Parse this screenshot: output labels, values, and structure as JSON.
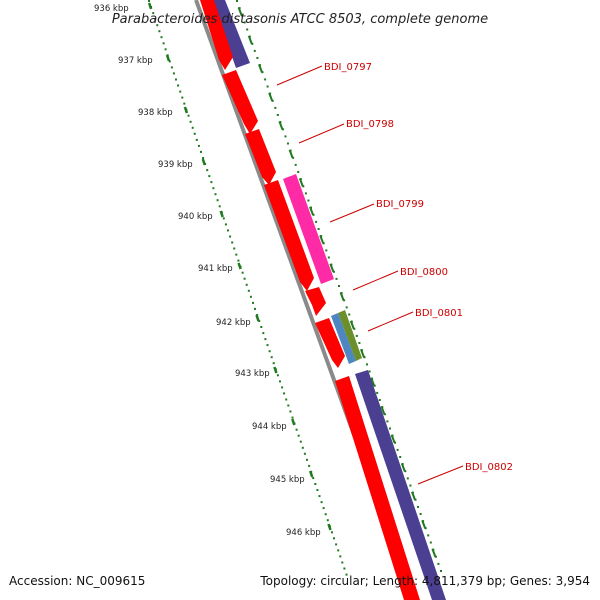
{
  "title": "Parabacteroides distasonis ATCC 8503, complete genome",
  "accession": "Accession: NC_009615",
  "summary": "Topology: circular; Length: 4,811,379 bp; Genes: 3,954",
  "ruler": {
    "labels": [
      "936 kbp",
      "937 kbp",
      "938 kbp",
      "939 kbp",
      "940 kbp",
      "941 kbp",
      "942 kbp",
      "943 kbp",
      "944 kbp",
      "945 kbp",
      "946 kbp"
    ]
  },
  "gene_labels": [
    "BDI_0797",
    "BDI_0798",
    "BDI_0799",
    "BDI_0800",
    "BDI_0801",
    "BDI_0802"
  ],
  "colors": {
    "cds_forward": "#ff0000",
    "cds_reverse": "#4b3f91",
    "trna": "#ff2aa6",
    "feature_blue": "#4e86c1",
    "feature_green": "#6b8f2a",
    "backbone": "#8a8a8a",
    "ruler": "#1f7a1f",
    "label_text": "#cc0000"
  }
}
